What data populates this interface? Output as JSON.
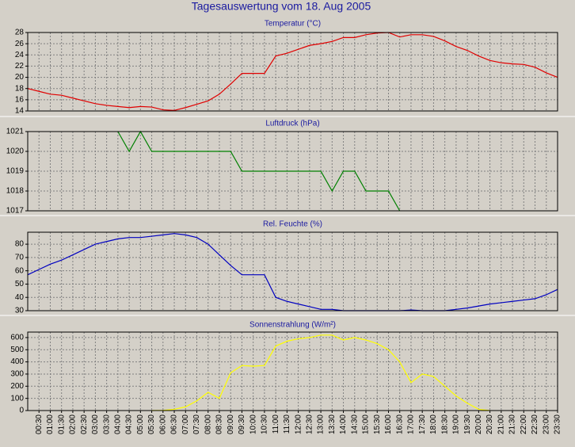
{
  "title": "Tagesauswertung vom 18. Aug 2005",
  "chart_data": [
    {
      "type": "line",
      "title": "Temperatur (°C)",
      "color": "#e00000",
      "x": [
        0,
        0.5,
        1,
        1.5,
        2,
        2.5,
        3,
        3.5,
        4,
        4.5,
        5,
        5.5,
        6,
        6.5,
        7,
        7.5,
        8,
        8.5,
        9,
        9.5,
        10,
        10.5,
        11,
        11.5,
        12,
        12.5,
        13,
        13.5,
        14,
        14.5,
        15,
        15.5,
        16,
        16.5,
        17,
        17.5,
        18,
        18.5,
        19,
        19.5,
        20,
        20.5,
        21,
        21.5,
        22,
        22.5,
        23,
        23.5
      ],
      "values": [
        18,
        17.5,
        17,
        16.8,
        16.3,
        15.8,
        15.3,
        15,
        14.8,
        14.6,
        14.8,
        14.7,
        14.2,
        14.1,
        14.6,
        15.2,
        15.8,
        17,
        18.8,
        20.7,
        20.7,
        20.7,
        23.8,
        24.3,
        25,
        25.7,
        26,
        26.4,
        27.1,
        27.1,
        27.6,
        27.9,
        28,
        27.2,
        27.6,
        27.6,
        27.3,
        26.5,
        25.5,
        24.8,
        23.8,
        23,
        22.6,
        22.4,
        22.3,
        21.8,
        20.8,
        20
      ],
      "xlim": [
        0,
        23.5
      ],
      "ylim": [
        14,
        28
      ],
      "yticks": [
        14,
        16,
        18,
        20,
        22,
        24,
        26,
        28
      ],
      "grid": true
    },
    {
      "type": "line",
      "title": "Luftdruck (hPa)",
      "color": "#008000",
      "x": [
        0,
        0.5,
        1,
        1.5,
        2,
        2.5,
        3,
        3.5,
        4,
        4.5,
        5,
        5.5,
        6,
        6.5,
        7,
        7.5,
        8,
        8.5,
        9,
        9.5,
        10,
        10.5,
        11,
        11.5,
        12,
        12.5,
        13,
        13.5,
        14,
        14.5,
        15,
        15.5,
        16,
        16.5,
        17,
        17.5,
        18,
        18.5,
        19,
        19.5,
        20,
        20.5,
        21,
        21.5,
        22,
        22.5,
        23,
        23.5
      ],
      "values": [
        null,
        null,
        null,
        null,
        null,
        null,
        null,
        null,
        1021,
        1020,
        1021,
        1020,
        1020,
        1020,
        1020,
        1020,
        1020,
        1020,
        1020,
        1019,
        1019,
        1019,
        1019,
        1019,
        1019,
        1019,
        1019,
        1018,
        1019,
        1019,
        1018,
        1018,
        1018,
        1017,
        null,
        null,
        null,
        null,
        null,
        null,
        null,
        null,
        null,
        null,
        null,
        null,
        null,
        null
      ],
      "xlim": [
        0,
        23.5
      ],
      "ylim": [
        1017,
        1021
      ],
      "yticks": [
        1017,
        1018,
        1019,
        1020,
        1021
      ],
      "grid": true
    },
    {
      "type": "line",
      "title": "Rel. Feuchte (%)",
      "color": "#0000c0",
      "x": [
        0,
        0.5,
        1,
        1.5,
        2,
        2.5,
        3,
        3.5,
        4,
        4.5,
        5,
        5.5,
        6,
        6.5,
        7,
        7.5,
        8,
        8.5,
        9,
        9.5,
        10,
        10.5,
        11,
        11.5,
        12,
        12.5,
        13,
        13.5,
        14,
        14.5,
        15,
        15.5,
        16,
        16.5,
        17,
        17.5,
        18,
        18.5,
        19,
        19.5,
        20,
        20.5,
        21,
        21.5,
        22,
        22.5,
        23,
        23.5
      ],
      "values": [
        57,
        61,
        65,
        68,
        72,
        76,
        80,
        82,
        84,
        85,
        85,
        86,
        87,
        88,
        87,
        85,
        80,
        72,
        64,
        57,
        57,
        57,
        40,
        37,
        35,
        33,
        31,
        31,
        30,
        30,
        30,
        30,
        30,
        30,
        30.5,
        30,
        30,
        30,
        31,
        32,
        33.5,
        35,
        36,
        37,
        38,
        39,
        42,
        46
      ],
      "xlim": [
        0,
        23.5
      ],
      "ylim": [
        30,
        89
      ],
      "yticks": [
        30,
        40,
        50,
        60,
        70,
        80
      ],
      "grid": true
    },
    {
      "type": "line",
      "title": "Sonnenstrahlung (W/m²)",
      "color": "#ffff00",
      "x": [
        0,
        0.5,
        1,
        1.5,
        2,
        2.5,
        3,
        3.5,
        4,
        4.5,
        5,
        5.5,
        6,
        6.5,
        7,
        7.5,
        8,
        8.5,
        9,
        9.5,
        10,
        10.5,
        11,
        11.5,
        12,
        12.5,
        13,
        13.5,
        14,
        14.5,
        15,
        15.5,
        16,
        16.5,
        17,
        17.5,
        18,
        18.5,
        19,
        19.5,
        20,
        20.5,
        21,
        21.5,
        22,
        22.5,
        23,
        23.5
      ],
      "values": [
        null,
        null,
        null,
        null,
        null,
        null,
        null,
        null,
        null,
        null,
        null,
        0,
        2,
        10,
        30,
        80,
        150,
        100,
        310,
        370,
        365,
        370,
        530,
        570,
        590,
        600,
        620,
        620,
        580,
        600,
        580,
        550,
        500,
        400,
        230,
        300,
        280,
        200,
        120,
        60,
        10,
        0,
        null,
        null,
        null,
        null,
        null,
        null
      ],
      "xlim": [
        0,
        23.5
      ],
      "ylim": [
        0,
        645
      ],
      "yticks": [
        0,
        100,
        200,
        300,
        400,
        500,
        600
      ],
      "grid": true,
      "xticks": [
        {
          "value": 0.5,
          "label": "00:30"
        },
        {
          "value": 1,
          "label": "01:00"
        },
        {
          "value": 1.5,
          "label": "01:30"
        },
        {
          "value": 2,
          "label": "02:00"
        },
        {
          "value": 2.5,
          "label": "02:30"
        },
        {
          "value": 3,
          "label": "03:00"
        },
        {
          "value": 3.5,
          "label": "03:30"
        },
        {
          "value": 4,
          "label": "04:00"
        },
        {
          "value": 4.5,
          "label": "04:30"
        },
        {
          "value": 5,
          "label": "05:00"
        },
        {
          "value": 5.5,
          "label": "05:30"
        },
        {
          "value": 6,
          "label": "06:00"
        },
        {
          "value": 6.5,
          "label": "06:30"
        },
        {
          "value": 7,
          "label": "07:00"
        },
        {
          "value": 7.5,
          "label": "07:30"
        },
        {
          "value": 8,
          "label": "08:00"
        },
        {
          "value": 8.5,
          "label": "08:30"
        },
        {
          "value": 9,
          "label": "09:00"
        },
        {
          "value": 9.5,
          "label": "09:30"
        },
        {
          "value": 10,
          "label": "10:00"
        },
        {
          "value": 10.5,
          "label": "10:30"
        },
        {
          "value": 11,
          "label": "11:00"
        },
        {
          "value": 11.5,
          "label": "11:30"
        },
        {
          "value": 12,
          "label": "12:00"
        },
        {
          "value": 12.5,
          "label": "12:30"
        },
        {
          "value": 13,
          "label": "13:00"
        },
        {
          "value": 13.5,
          "label": "13:30"
        },
        {
          "value": 14,
          "label": "14:00"
        },
        {
          "value": 14.5,
          "label": "14:30"
        },
        {
          "value": 15,
          "label": "15:00"
        },
        {
          "value": 15.5,
          "label": "15:30"
        },
        {
          "value": 16,
          "label": "16:00"
        },
        {
          "value": 16.5,
          "label": "16:30"
        },
        {
          "value": 17,
          "label": "17:00"
        },
        {
          "value": 17.5,
          "label": "17:30"
        },
        {
          "value": 18,
          "label": "18:00"
        },
        {
          "value": 18.5,
          "label": "18:30"
        },
        {
          "value": 19,
          "label": "19:00"
        },
        {
          "value": 19.5,
          "label": "19:30"
        },
        {
          "value": 20,
          "label": "20:00"
        },
        {
          "value": 20.5,
          "label": "20:30"
        },
        {
          "value": 21,
          "label": "21:00"
        },
        {
          "value": 21.5,
          "label": "21:30"
        },
        {
          "value": 22,
          "label": "22:00"
        },
        {
          "value": 22.5,
          "label": "22:30"
        },
        {
          "value": 23,
          "label": "23:00"
        },
        {
          "value": 23.5,
          "label": "23:30"
        }
      ]
    }
  ]
}
